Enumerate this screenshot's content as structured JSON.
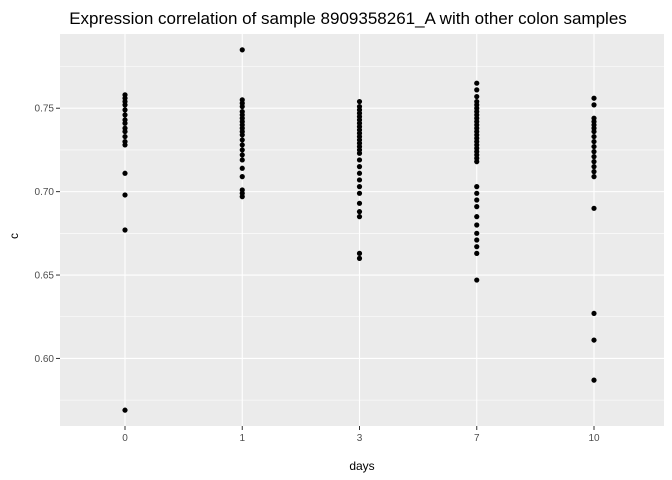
{
  "chart_data": {
    "type": "scatter",
    "title": "Expression correlation of sample 8909358261_A with other colon samples",
    "xlabel": "days",
    "ylabel": "c",
    "x_categories": [
      "0",
      "1",
      "3",
      "7",
      "10"
    ],
    "y_ticks": [
      "0.60",
      "0.65",
      "0.70",
      "0.75"
    ],
    "ylim": [
      0.5595,
      0.7945
    ],
    "grid": true,
    "background": "#EBEBEB",
    "gridline_color": "#FFFFFF",
    "point_color": "#000000",
    "points": [
      {
        "day": "0",
        "c": 0.758
      },
      {
        "day": "0",
        "c": 0.756
      },
      {
        "day": "0",
        "c": 0.754
      },
      {
        "day": "0",
        "c": 0.752
      },
      {
        "day": "0",
        "c": 0.749
      },
      {
        "day": "0",
        "c": 0.746
      },
      {
        "day": "0",
        "c": 0.743
      },
      {
        "day": "0",
        "c": 0.741
      },
      {
        "day": "0",
        "c": 0.738
      },
      {
        "day": "0",
        "c": 0.736
      },
      {
        "day": "0",
        "c": 0.733
      },
      {
        "day": "0",
        "c": 0.73
      },
      {
        "day": "0",
        "c": 0.728
      },
      {
        "day": "0",
        "c": 0.711
      },
      {
        "day": "0",
        "c": 0.698
      },
      {
        "day": "0",
        "c": 0.677
      },
      {
        "day": "0",
        "c": 0.569
      },
      {
        "day": "1",
        "c": 0.785
      },
      {
        "day": "1",
        "c": 0.755
      },
      {
        "day": "1",
        "c": 0.753
      },
      {
        "day": "1",
        "c": 0.751
      },
      {
        "day": "1",
        "c": 0.748
      },
      {
        "day": "1",
        "c": 0.746
      },
      {
        "day": "1",
        "c": 0.744
      },
      {
        "day": "1",
        "c": 0.742
      },
      {
        "day": "1",
        "c": 0.74
      },
      {
        "day": "1",
        "c": 0.738
      },
      {
        "day": "1",
        "c": 0.736
      },
      {
        "day": "1",
        "c": 0.734
      },
      {
        "day": "1",
        "c": 0.731
      },
      {
        "day": "1",
        "c": 0.728
      },
      {
        "day": "1",
        "c": 0.725
      },
      {
        "day": "1",
        "c": 0.722
      },
      {
        "day": "1",
        "c": 0.719
      },
      {
        "day": "1",
        "c": 0.714
      },
      {
        "day": "1",
        "c": 0.709
      },
      {
        "day": "1",
        "c": 0.701
      },
      {
        "day": "1",
        "c": 0.699
      },
      {
        "day": "1",
        "c": 0.697
      },
      {
        "day": "3",
        "c": 0.754
      },
      {
        "day": "3",
        "c": 0.751
      },
      {
        "day": "3",
        "c": 0.749
      },
      {
        "day": "3",
        "c": 0.747
      },
      {
        "day": "3",
        "c": 0.745
      },
      {
        "day": "3",
        "c": 0.743
      },
      {
        "day": "3",
        "c": 0.741
      },
      {
        "day": "3",
        "c": 0.739
      },
      {
        "day": "3",
        "c": 0.737
      },
      {
        "day": "3",
        "c": 0.735
      },
      {
        "day": "3",
        "c": 0.733
      },
      {
        "day": "3",
        "c": 0.731
      },
      {
        "day": "3",
        "c": 0.729
      },
      {
        "day": "3",
        "c": 0.727
      },
      {
        "day": "3",
        "c": 0.725
      },
      {
        "day": "3",
        "c": 0.723
      },
      {
        "day": "3",
        "c": 0.719
      },
      {
        "day": "3",
        "c": 0.715
      },
      {
        "day": "3",
        "c": 0.711
      },
      {
        "day": "3",
        "c": 0.707
      },
      {
        "day": "3",
        "c": 0.703
      },
      {
        "day": "3",
        "c": 0.699
      },
      {
        "day": "3",
        "c": 0.693
      },
      {
        "day": "3",
        "c": 0.688
      },
      {
        "day": "3",
        "c": 0.685
      },
      {
        "day": "3",
        "c": 0.663
      },
      {
        "day": "3",
        "c": 0.66
      },
      {
        "day": "7",
        "c": 0.765
      },
      {
        "day": "7",
        "c": 0.761
      },
      {
        "day": "7",
        "c": 0.757
      },
      {
        "day": "7",
        "c": 0.754
      },
      {
        "day": "7",
        "c": 0.752
      },
      {
        "day": "7",
        "c": 0.75
      },
      {
        "day": "7",
        "c": 0.748
      },
      {
        "day": "7",
        "c": 0.746
      },
      {
        "day": "7",
        "c": 0.744
      },
      {
        "day": "7",
        "c": 0.742
      },
      {
        "day": "7",
        "c": 0.74
      },
      {
        "day": "7",
        "c": 0.738
      },
      {
        "day": "7",
        "c": 0.736
      },
      {
        "day": "7",
        "c": 0.734
      },
      {
        "day": "7",
        "c": 0.732
      },
      {
        "day": "7",
        "c": 0.73
      },
      {
        "day": "7",
        "c": 0.728
      },
      {
        "day": "7",
        "c": 0.726
      },
      {
        "day": "7",
        "c": 0.724
      },
      {
        "day": "7",
        "c": 0.722
      },
      {
        "day": "7",
        "c": 0.72
      },
      {
        "day": "7",
        "c": 0.718
      },
      {
        "day": "7",
        "c": 0.703
      },
      {
        "day": "7",
        "c": 0.699
      },
      {
        "day": "7",
        "c": 0.695
      },
      {
        "day": "7",
        "c": 0.691
      },
      {
        "day": "7",
        "c": 0.685
      },
      {
        "day": "7",
        "c": 0.68
      },
      {
        "day": "7",
        "c": 0.675
      },
      {
        "day": "7",
        "c": 0.671
      },
      {
        "day": "7",
        "c": 0.667
      },
      {
        "day": "7",
        "c": 0.663
      },
      {
        "day": "7",
        "c": 0.647
      },
      {
        "day": "10",
        "c": 0.756
      },
      {
        "day": "10",
        "c": 0.752
      },
      {
        "day": "10",
        "c": 0.744
      },
      {
        "day": "10",
        "c": 0.742
      },
      {
        "day": "10",
        "c": 0.74
      },
      {
        "day": "10",
        "c": 0.738
      },
      {
        "day": "10",
        "c": 0.736
      },
      {
        "day": "10",
        "c": 0.733
      },
      {
        "day": "10",
        "c": 0.73
      },
      {
        "day": "10",
        "c": 0.727
      },
      {
        "day": "10",
        "c": 0.724
      },
      {
        "day": "10",
        "c": 0.721
      },
      {
        "day": "10",
        "c": 0.718
      },
      {
        "day": "10",
        "c": 0.715
      },
      {
        "day": "10",
        "c": 0.712
      },
      {
        "day": "10",
        "c": 0.709
      },
      {
        "day": "10",
        "c": 0.69
      },
      {
        "day": "10",
        "c": 0.627
      },
      {
        "day": "10",
        "c": 0.611
      },
      {
        "day": "10",
        "c": 0.587
      }
    ]
  }
}
